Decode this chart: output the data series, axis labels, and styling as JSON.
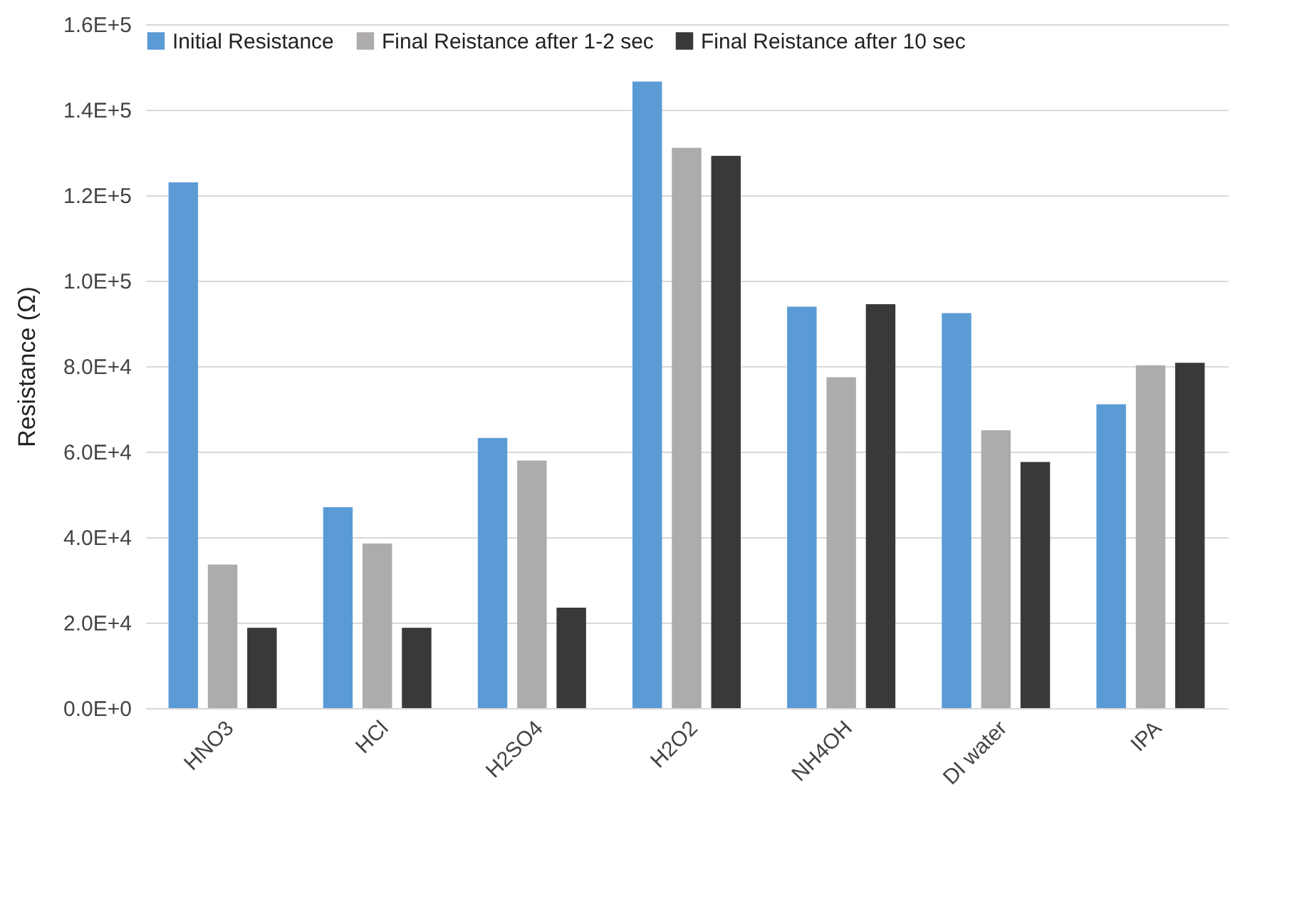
{
  "chart_data": {
    "type": "bar",
    "ylabel": "Resistance (Ω)",
    "categories": [
      "HNO3",
      "HCl",
      "H2SO4",
      "H2O2",
      "NH4OH",
      "DI water",
      "IPA"
    ],
    "series": [
      {
        "name": "Initial Resistance",
        "color": "#5b9bd5",
        "values": [
          123000,
          47000,
          63200,
          146600,
          93900,
          92400,
          71100
        ]
      },
      {
        "name": "Final Reistance after 1-2 sec",
        "color": "#aeabab",
        "values": [
          33600,
          38500,
          57900,
          131100,
          77400,
          65000,
          80200
        ]
      },
      {
        "name": "Final Reistance after 10 sec",
        "color": "#3a3838",
        "values": [
          18800,
          18800,
          23500,
          129200,
          94500,
          57600,
          80800
        ]
      }
    ],
    "ylim": [
      0,
      160000
    ],
    "yticks": [
      {
        "value": 0,
        "label": "0.0E+0"
      },
      {
        "value": 20000,
        "label": "2.0E+4"
      },
      {
        "value": 40000,
        "label": "4.0E+4"
      },
      {
        "value": 60000,
        "label": "6.0E+4"
      },
      {
        "value": 80000,
        "label": "8.0E+4"
      },
      {
        "value": 100000,
        "label": "1.0E+5"
      },
      {
        "value": 120000,
        "label": "1.2E+5"
      },
      {
        "value": 140000,
        "label": "1.4E+5"
      },
      {
        "value": 160000,
        "label": "1.6E+5"
      }
    ],
    "grid": "y",
    "legend": "top"
  }
}
